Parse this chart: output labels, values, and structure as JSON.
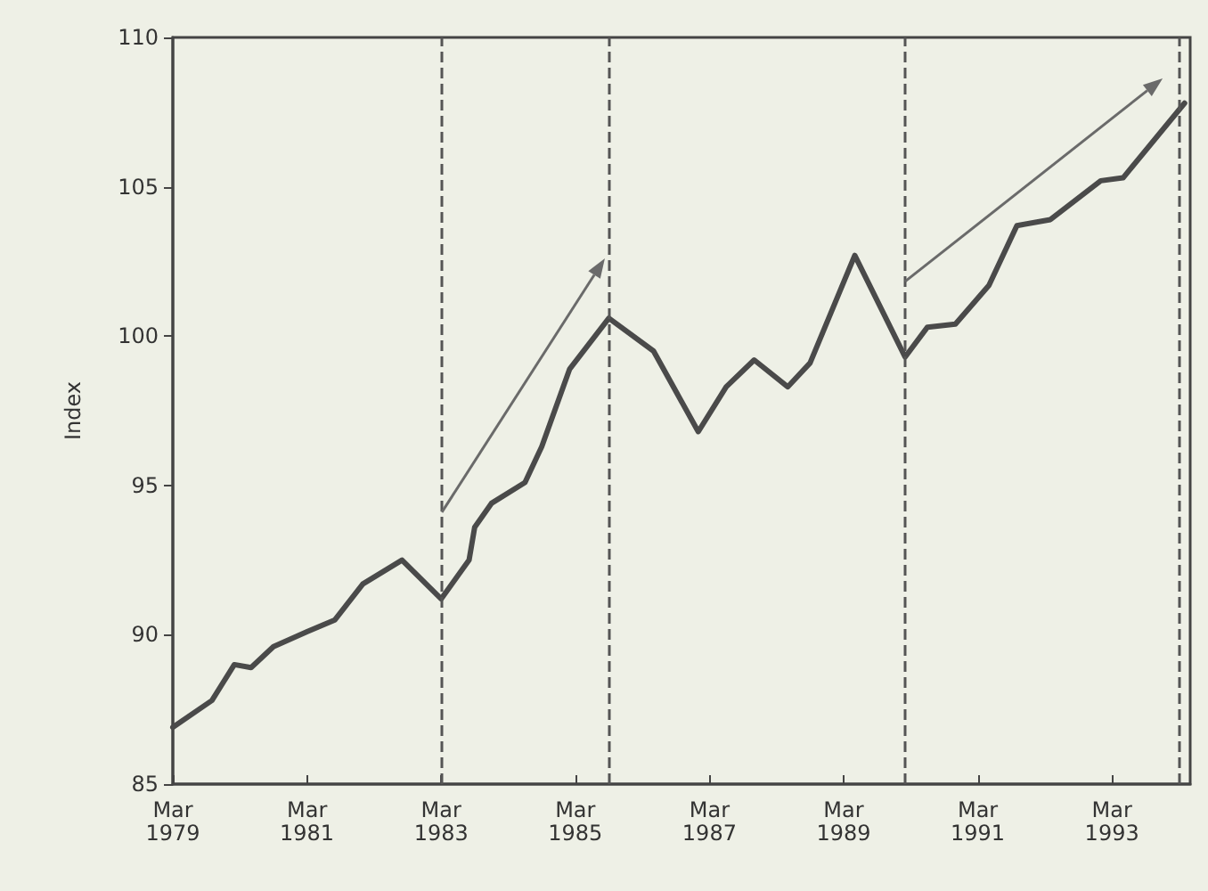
{
  "chart_data": {
    "type": "line",
    "ylabel": "Index",
    "x": [
      "1979-03",
      "1979-10",
      "1980-02",
      "1980-05",
      "1980-09",
      "1981-03",
      "1981-08",
      "1982-01",
      "1982-08",
      "1983-03",
      "1983-08",
      "1983-09",
      "1983-12",
      "1984-06",
      "1984-09",
      "1985-02",
      "1985-09",
      "1986-05",
      "1987-01",
      "1987-06",
      "1987-11",
      "1988-05",
      "1988-09",
      "1989-05",
      "1990-02",
      "1990-06",
      "1990-11",
      "1991-05",
      "1991-10",
      "1992-04",
      "1993-01",
      "1993-05",
      "1994-04"
    ],
    "series": [
      {
        "color": "#4a4a4a",
        "values": [
          86.9,
          87.8,
          89.0,
          88.9,
          89.6,
          90.1,
          90.5,
          91.7,
          92.5,
          91.2,
          92.5,
          93.6,
          94.4,
          95.1,
          96.3,
          98.9,
          100.6,
          99.5,
          96.8,
          98.3,
          99.2,
          98.3,
          99.1,
          102.7,
          99.3,
          100.3,
          100.4,
          101.7,
          103.7,
          103.9,
          105.2,
          105.3,
          107.8
        ]
      }
    ],
    "xlim": [
      "1979-03",
      "1994-05"
    ],
    "xticks": [
      {
        "value": "1979-03",
        "label": "Mar\n1979"
      },
      {
        "value": "1981-03",
        "label": "Mar\n1981"
      },
      {
        "value": "1983-03",
        "label": "Mar\n1983"
      },
      {
        "value": "1985-03",
        "label": "Mar\n1985"
      },
      {
        "value": "1987-03",
        "label": "Mar\n1987"
      },
      {
        "value": "1989-03",
        "label": "Mar\n1989"
      },
      {
        "value": "1991-03",
        "label": "Mar\n1991"
      },
      {
        "value": "1993-03",
        "label": "Mar\n1993"
      }
    ],
    "ylim": [
      85,
      110
    ],
    "yticks": [
      85,
      90,
      95,
      100,
      105,
      110
    ],
    "ref_lines": [
      {
        "axis": "x",
        "value": "1983-03",
        "color": "#555555",
        "line_style": "dashed"
      },
      {
        "axis": "x",
        "value": "1985-09",
        "color": "#555555",
        "line_style": "dashed"
      },
      {
        "axis": "x",
        "value": "1990-02",
        "color": "#555555",
        "line_style": "dashed"
      },
      {
        "axis": "x",
        "value": "1994-03",
        "color": "#555555",
        "line_style": "dashed"
      }
    ],
    "marker": "none",
    "line_style": "solid",
    "grid": false
  }
}
